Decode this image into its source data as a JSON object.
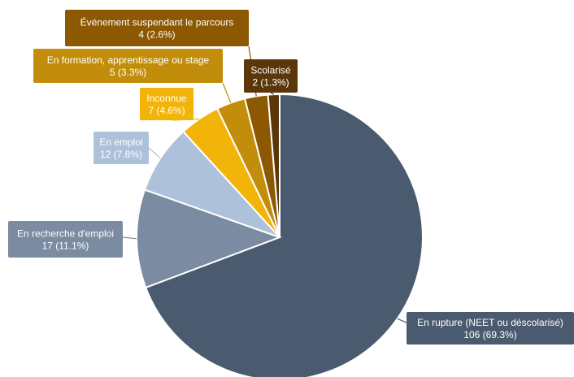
{
  "chart_data": {
    "type": "pie",
    "title": "",
    "start_angle_deg": 0,
    "direction": "clockwise",
    "slices": [
      {
        "name": "En rupture (NEET ou déscolarisé)",
        "value": 106,
        "display": "106 (69.3%)",
        "color": "#4a5b6f"
      },
      {
        "name": "En recherche d'emploi",
        "value": 17,
        "display": "17 (11.1%)",
        "color": "#7b8ba1"
      },
      {
        "name": "En emploi",
        "value": 12,
        "display": "12 (7.8%)",
        "color": "#adc1da"
      },
      {
        "name": "Inconnue",
        "value": 7,
        "display": "7 (4.6%)",
        "color": "#f2b409"
      },
      {
        "name": "En formation, apprentissage ou stage",
        "value": 5,
        "display": "5 (3.3%)",
        "color": "#c28d0a"
      },
      {
        "name": "Événement suspendant le parcours",
        "value": 4,
        "display": "4 (2.6%)",
        "color": "#8c5802"
      },
      {
        "name": "Scolarisé",
        "value": 2,
        "display": "2 (1.3%)",
        "color": "#5a3608"
      }
    ],
    "legend": "none"
  }
}
